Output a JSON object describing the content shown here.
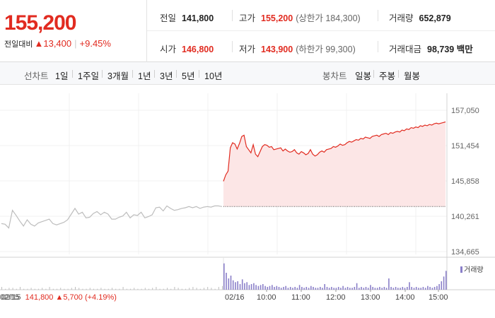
{
  "header": {
    "current_price": "155,200",
    "change_label": "전일대비",
    "change_arrow": "▲",
    "change_amount": "13,400",
    "change_percent": "+9.45%",
    "prev_close": {
      "label": "전일",
      "value": "141,800"
    },
    "high": {
      "label": "고가",
      "value": "155,200",
      "sub": "(상한가 184,300)"
    },
    "volume": {
      "label": "거래량",
      "value": "652,879"
    },
    "open": {
      "label": "시가",
      "value": "146,800"
    },
    "low": {
      "label": "저가",
      "value": "143,900",
      "sub": "(하한가 99,300)"
    },
    "trade_value": {
      "label": "거래대금",
      "value": "98,739",
      "unit": "백만"
    }
  },
  "tabs": {
    "line_label": "선차트",
    "line_tabs": [
      {
        "label": "1일",
        "active": true
      },
      {
        "label": "1주일",
        "active": false
      },
      {
        "label": "3개월",
        "active": false
      },
      {
        "label": "1년",
        "active": false
      },
      {
        "label": "3년",
        "active": false
      },
      {
        "label": "5년",
        "active": false
      },
      {
        "label": "10년",
        "active": false
      }
    ],
    "candle_label": "봉차트",
    "candle_tabs": [
      {
        "label": "일봉",
        "active": false
      },
      {
        "label": "주봉",
        "active": false
      },
      {
        "label": "월봉",
        "active": false
      }
    ]
  },
  "chart_data": {
    "type": "line",
    "y_ticks": [
      "157,050",
      "151,454",
      "145,858",
      "140,261",
      "134,665"
    ],
    "y_tick_values": [
      157050,
      151454,
      145858,
      140261,
      134665
    ],
    "ylim": [
      134665,
      157050
    ],
    "prev_close_value": 141800,
    "prev_day": {
      "date_label": "02/15",
      "values": [
        139100,
        139000,
        138400,
        141200,
        140400,
        139500,
        138700,
        139700,
        139000,
        138700,
        139200,
        139400,
        139600,
        139800,
        139100,
        138900,
        139100,
        139300,
        139700,
        140600,
        141500,
        140600,
        140900,
        140000,
        140100,
        140700,
        141000,
        140500,
        140900,
        140600,
        139800,
        139800,
        140100,
        140300,
        140900,
        140000,
        140500,
        140400,
        140900,
        140000,
        140200,
        140500,
        141600,
        141700,
        141100,
        141900,
        141500,
        141200,
        141300,
        141500,
        141600,
        141800,
        141600,
        141800,
        141500,
        141700,
        141800,
        141700,
        141900,
        141900,
        141800
      ],
      "volumes": [
        3,
        1,
        2,
        2,
        1,
        3,
        1,
        1,
        2,
        1,
        1,
        2,
        1,
        3,
        1,
        1,
        2,
        1,
        1,
        2,
        3,
        2,
        1,
        1,
        2,
        1,
        1,
        2,
        1,
        1,
        2,
        1,
        1,
        3,
        1,
        1,
        2,
        1,
        1,
        2,
        1,
        2,
        3,
        1,
        1,
        2,
        1,
        3,
        2,
        1,
        1,
        2,
        3,
        2,
        1,
        2,
        3,
        2,
        1,
        3,
        4
      ]
    },
    "today": {
      "date_label": "02/16",
      "time_labels": [
        "10:00",
        "11:00",
        "12:00",
        "13:00",
        "14:00",
        "15:00"
      ],
      "values": [
        145800,
        146800,
        147400,
        151100,
        151900,
        151700,
        150900,
        151800,
        152900,
        153100,
        151300,
        150800,
        150300,
        151600,
        150100,
        149700,
        150500,
        151300,
        151600,
        151500,
        151200,
        151300,
        150800,
        150900,
        151000,
        151100,
        150600,
        150900,
        150600,
        150400,
        150500,
        150800,
        150300,
        150100,
        150500,
        150300,
        150000,
        150200,
        150800,
        150100,
        149800,
        150000,
        150400,
        150600,
        150400,
        150800,
        150900,
        151000,
        151300,
        151200,
        151400,
        151700,
        151500,
        151600,
        151900,
        152100,
        152000,
        152200,
        152400,
        152300,
        152600,
        152500,
        152800,
        152700,
        152600,
        152900,
        153000,
        153100,
        152900,
        153200,
        153300,
        153400,
        153200,
        153500,
        153400,
        153600,
        153700,
        153600,
        153900,
        153800,
        154100,
        154000,
        154300,
        154200,
        154400,
        154300,
        154600,
        154500,
        154700,
        154600,
        154800,
        154700,
        154900,
        155000,
        154900,
        155000,
        155100,
        155200
      ],
      "volumes": [
        28,
        18,
        12,
        15,
        10,
        8,
        9,
        6,
        11,
        7,
        8,
        5,
        6,
        7,
        5,
        4,
        5,
        6,
        4,
        3,
        4,
        5,
        3,
        4,
        3,
        2,
        3,
        4,
        2,
        3,
        2,
        3,
        2,
        5,
        3,
        2,
        3,
        2,
        4,
        3,
        2,
        2,
        3,
        2,
        6,
        3,
        2,
        3,
        2,
        2,
        3,
        2,
        4,
        2,
        3,
        2,
        2,
        3,
        7,
        2,
        3,
        2,
        3,
        2,
        5,
        3,
        2,
        2,
        3,
        2,
        3,
        2,
        12,
        3,
        2,
        3,
        2,
        2,
        3,
        2,
        3,
        8,
        3,
        2,
        3,
        2,
        2,
        3,
        2,
        4,
        3,
        2,
        3,
        4,
        6,
        9,
        14,
        20
      ]
    },
    "volume_legend": "거래량",
    "prev_close_caption": {
      "date": "02/15",
      "price": "141,800",
      "arrow": "▲",
      "change": "5,700",
      "percent": "(+4.19%)"
    },
    "colors": {
      "up": "#e12b20",
      "fill": "#fce6e6",
      "prev_line": "#bdbdbd",
      "volume": "#8a7fc9",
      "volume_prev": "#bdbdbd"
    }
  }
}
